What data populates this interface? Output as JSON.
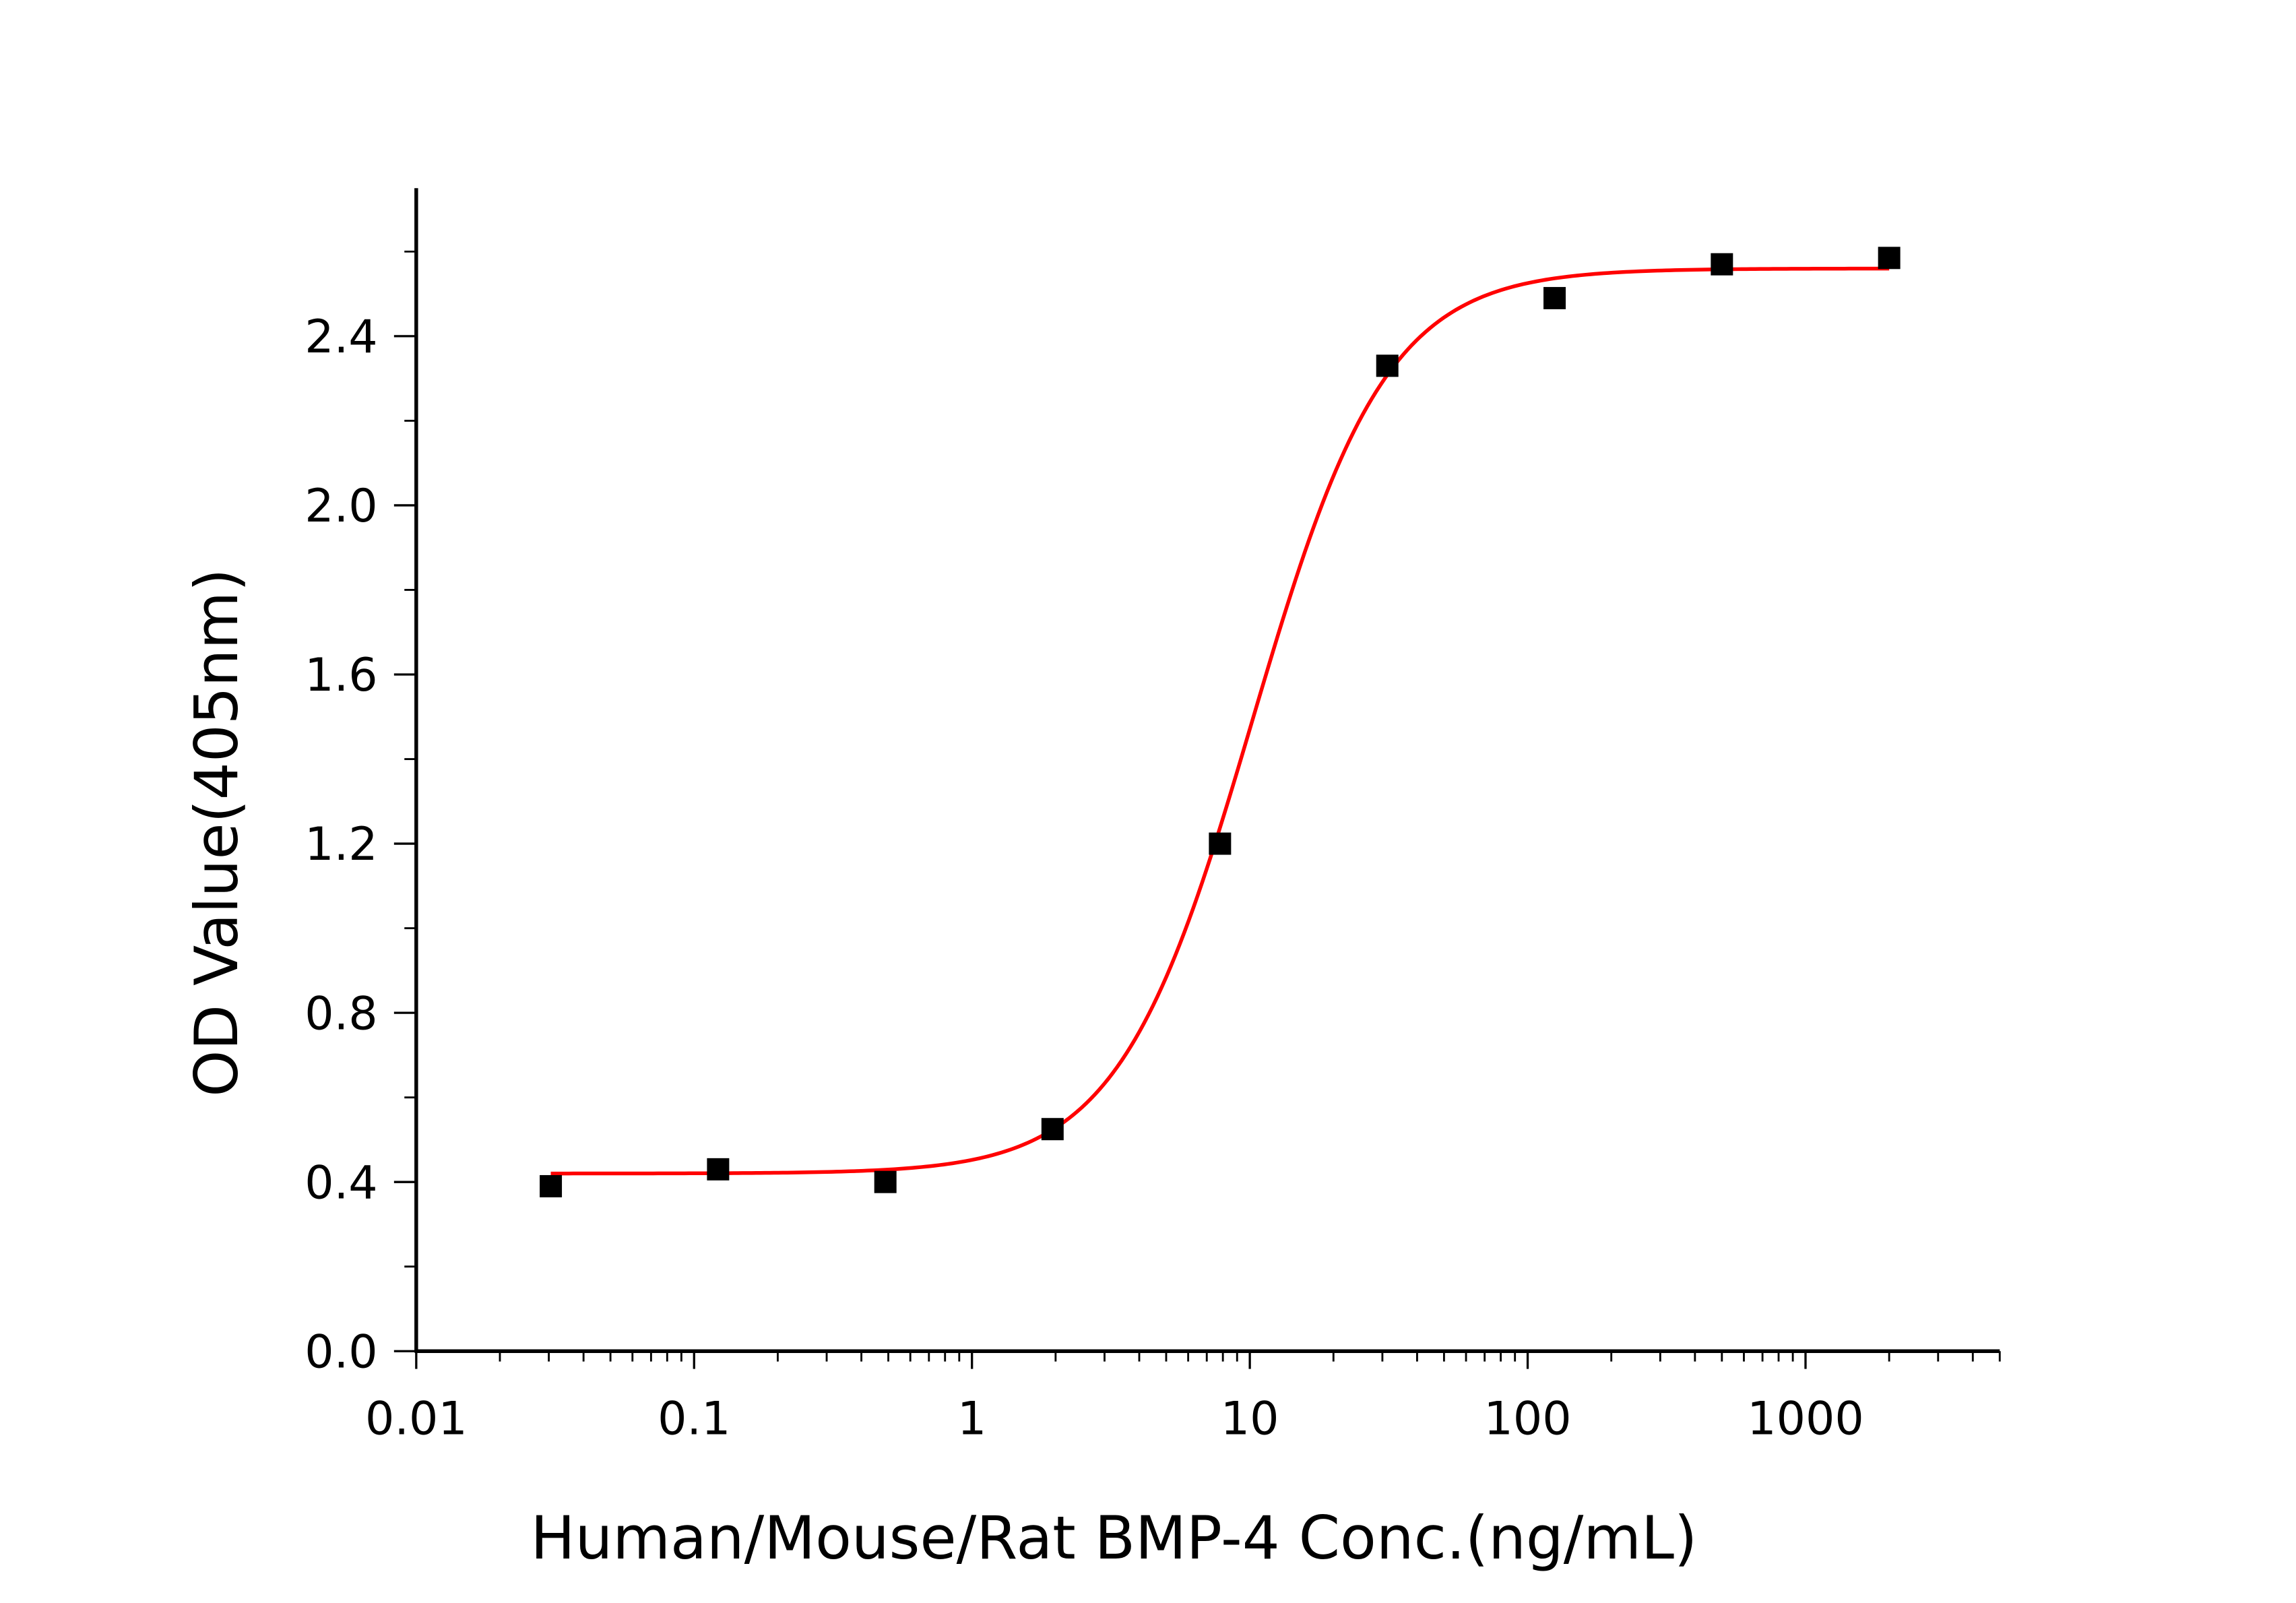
{
  "chart_data": {
    "type": "scatter",
    "title": "",
    "xlabel": "Human/Mouse/Rat BMP-4 Conc.(ng/mL)",
    "ylabel": "OD Value(405nm)",
    "xscale": "log",
    "xlim": [
      0.01,
      5000
    ],
    "ylim": [
      0,
      2.75
    ],
    "x_ticks": [
      0.01,
      0.1,
      1,
      10,
      100,
      1000
    ],
    "x_tick_labels": [
      "0.01",
      "0.1",
      "1",
      "10",
      "100",
      "1000"
    ],
    "y_ticks": [
      0,
      0.4,
      0.8,
      1.2,
      1.6,
      2.0,
      2.4
    ],
    "y_tick_labels": [
      "0.0",
      "0.4",
      "0.8",
      "1.2",
      "1.6",
      "2.0",
      "2.4"
    ],
    "grid": false,
    "legend": "none",
    "series": [
      {
        "kind": "points",
        "marker": "square",
        "color": "#000000",
        "x": [
          0.0305,
          0.122,
          0.488,
          1.95,
          7.81,
          31.25,
          125,
          500,
          2000
        ],
        "y": [
          0.39,
          0.43,
          0.4,
          0.525,
          1.2,
          2.33,
          2.49,
          2.57,
          2.585
        ]
      },
      {
        "kind": "fit-curve",
        "model": "4PL",
        "color": "#ff0000",
        "params": {
          "bottom": 0.42,
          "top": 2.56,
          "ec50": 10.2,
          "hill": 1.8
        },
        "x_range": [
          0.0305,
          2000
        ]
      }
    ]
  }
}
